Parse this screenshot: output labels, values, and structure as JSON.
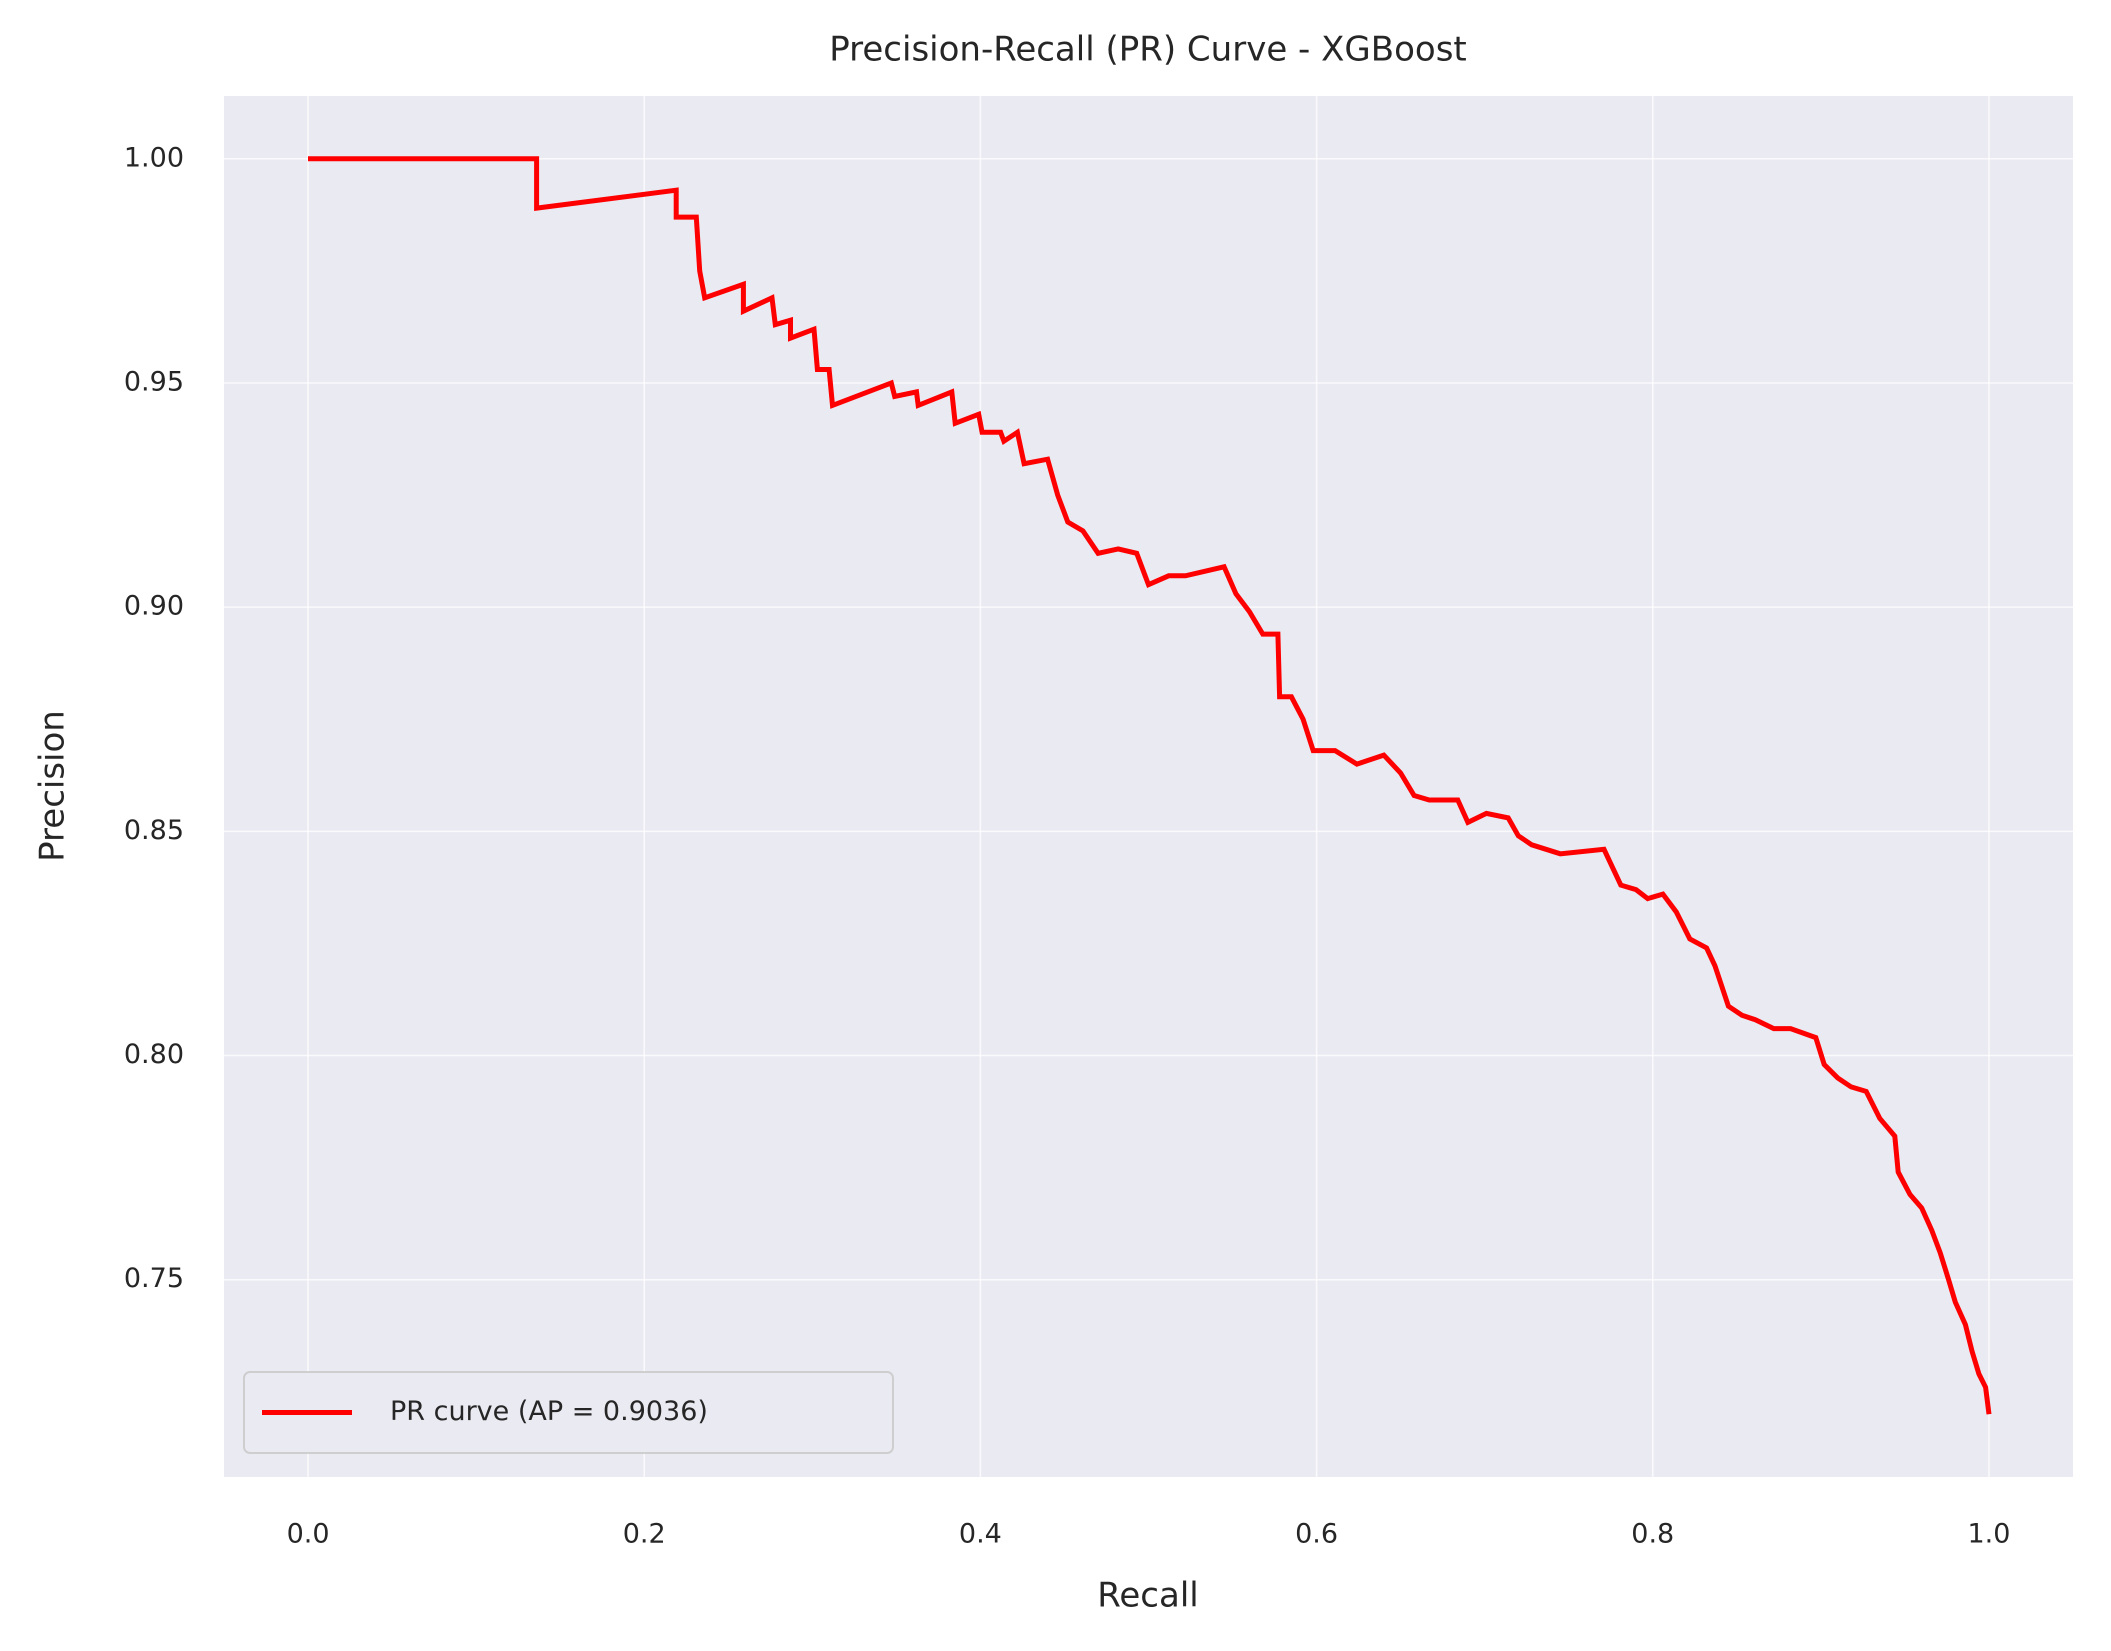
{
  "chart_data": {
    "type": "line",
    "title": "Precision-Recall (PR) Curve - XGBoost",
    "x_label": "Recall",
    "y_label": "Precision",
    "x": [
      0.0,
      0.136,
      0.136,
      0.219,
      0.219,
      0.231,
      0.233,
      0.236,
      0.259,
      0.259,
      0.276,
      0.278,
      0.287,
      0.287,
      0.301,
      0.303,
      0.31,
      0.312,
      0.347,
      0.349,
      0.362,
      0.363,
      0.383,
      0.385,
      0.399,
      0.401,
      0.412,
      0.414,
      0.422,
      0.426,
      0.44,
      0.446,
      0.452,
      0.461,
      0.47,
      0.482,
      0.493,
      0.5,
      0.512,
      0.522,
      0.545,
      0.552,
      0.56,
      0.568,
      0.577,
      0.578,
      0.585,
      0.592,
      0.598,
      0.611,
      0.624,
      0.64,
      0.65,
      0.658,
      0.667,
      0.684,
      0.69,
      0.701,
      0.714,
      0.72,
      0.728,
      0.745,
      0.771,
      0.781,
      0.79,
      0.797,
      0.806,
      0.814,
      0.822,
      0.832,
      0.837,
      0.845,
      0.853,
      0.861,
      0.872,
      0.882,
      0.897,
      0.902,
      0.91,
      0.918,
      0.927,
      0.935,
      0.944,
      0.946,
      0.953,
      0.96,
      0.966,
      0.971,
      0.976,
      0.98,
      0.986,
      0.99,
      0.994,
      0.998,
      1.0
    ],
    "series": [
      {
        "name": "PR curve (AP = 0.9036)",
        "color": "#ff0000",
        "values": [
          1.0,
          1.0,
          0.989,
          0.993,
          0.987,
          0.987,
          0.975,
          0.969,
          0.972,
          0.966,
          0.969,
          0.963,
          0.964,
          0.96,
          0.962,
          0.953,
          0.953,
          0.945,
          0.95,
          0.947,
          0.948,
          0.945,
          0.948,
          0.941,
          0.943,
          0.939,
          0.939,
          0.937,
          0.939,
          0.932,
          0.933,
          0.925,
          0.919,
          0.917,
          0.912,
          0.913,
          0.912,
          0.905,
          0.907,
          0.907,
          0.909,
          0.903,
          0.899,
          0.894,
          0.894,
          0.88,
          0.88,
          0.875,
          0.868,
          0.868,
          0.865,
          0.867,
          0.863,
          0.858,
          0.857,
          0.857,
          0.852,
          0.854,
          0.853,
          0.849,
          0.847,
          0.845,
          0.846,
          0.838,
          0.837,
          0.835,
          0.836,
          0.832,
          0.826,
          0.824,
          0.82,
          0.811,
          0.809,
          0.808,
          0.806,
          0.806,
          0.804,
          0.798,
          0.795,
          0.793,
          0.792,
          0.786,
          0.782,
          0.774,
          0.769,
          0.766,
          0.761,
          0.756,
          0.75,
          0.745,
          0.74,
          0.734,
          0.729,
          0.726,
          0.72
        ]
      }
    ],
    "xlim": [
      -0.05,
      1.05
    ],
    "ylim": [
      0.706,
      1.014
    ],
    "xticks": [
      {
        "value": 0.0,
        "label": "0.0"
      },
      {
        "value": 0.2,
        "label": "0.2"
      },
      {
        "value": 0.4,
        "label": "0.4"
      },
      {
        "value": 0.6,
        "label": "0.6"
      },
      {
        "value": 0.8,
        "label": "0.8"
      },
      {
        "value": 1.0,
        "label": "1.0"
      }
    ],
    "yticks": [
      {
        "value": 0.75,
        "label": "0.75"
      },
      {
        "value": 0.8,
        "label": "0.80"
      },
      {
        "value": 0.85,
        "label": "0.85"
      },
      {
        "value": 0.9,
        "label": "0.90"
      },
      {
        "value": 0.95,
        "label": "0.95"
      },
      {
        "value": 1.0,
        "label": "1.00"
      }
    ],
    "grid": true,
    "legend": "lower left"
  }
}
